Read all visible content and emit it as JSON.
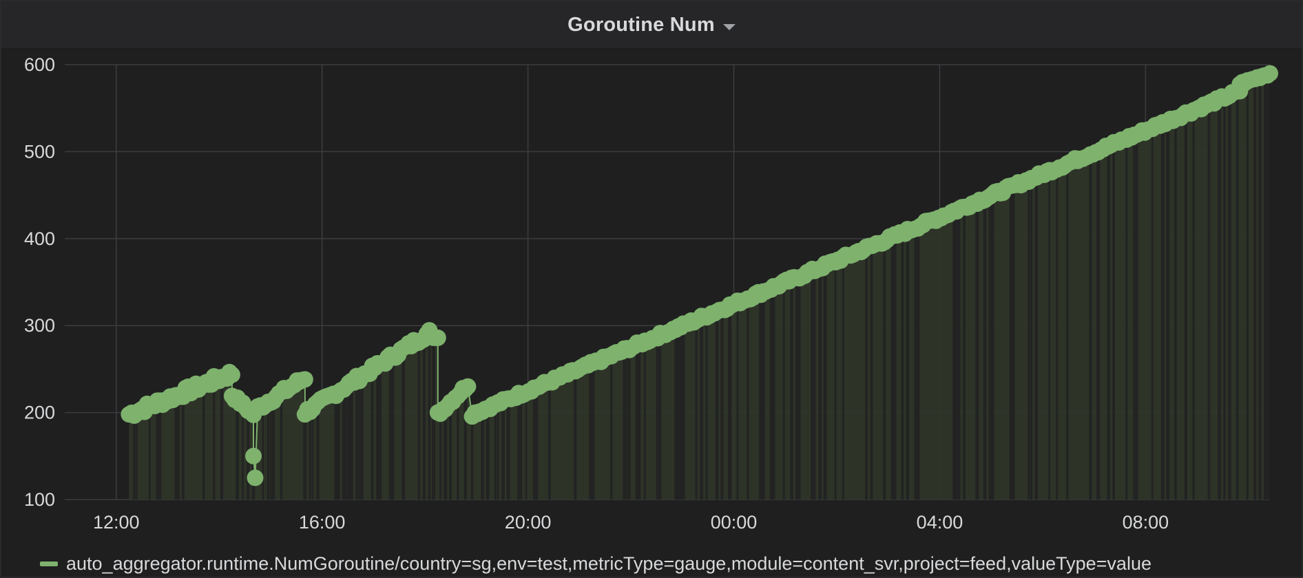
{
  "panel": {
    "title": "Goroutine Num",
    "menu_icon": "caret-down-icon"
  },
  "legend": {
    "items": [
      {
        "label": "auto_aggregator.runtime.NumGoroutine/country=sg,env=test,metricType=gauge,module=content_svr,project=feed,valueType=value",
        "color": "#7eb26d"
      }
    ]
  },
  "colors": {
    "background": "#1f1f20",
    "header": "#262628",
    "grid": "#3d3d40",
    "series": "#7eb26d",
    "area": "#2f3529",
    "text": "#d8d9da"
  },
  "chart_data": {
    "type": "line",
    "x_axis": {
      "type": "time",
      "min": "11:00",
      "max": "10:25 (+1d)",
      "ticks": [
        "12:00",
        "16:00",
        "20:00",
        "00:00",
        "04:00",
        "08:00"
      ]
    },
    "y_axis": {
      "min": 100,
      "max": 600,
      "ticks": [
        100,
        200,
        300,
        400,
        500,
        600
      ]
    },
    "grid": true,
    "fill": true,
    "points_visible": true,
    "legend_position": "bottom-left",
    "series": [
      {
        "name": "auto_aggregator.runtime.NumGoroutine/country=sg,env=test,metricType=gauge,module=content_svr,project=feed,valueType=value",
        "segments": [
          {
            "from": "12:15",
            "to": "14:15",
            "start": 198,
            "end": 245,
            "jitter": 10
          },
          {
            "from": "14:15",
            "to": "14:40",
            "start": 220,
            "end": 198,
            "jitter": 6
          },
          {
            "from": "14:40",
            "to": "14:42",
            "start": 150,
            "end": 125,
            "jitter": 0
          },
          {
            "from": "14:45",
            "to": "15:40",
            "start": 205,
            "end": 240,
            "jitter": 8
          },
          {
            "from": "15:40",
            "to": "18:05",
            "start": 200,
            "end": 292,
            "jitter": 8
          },
          {
            "from": "18:10",
            "to": "18:15",
            "start": 286,
            "end": 286,
            "jitter": 0
          },
          {
            "from": "18:15",
            "to": "18:50",
            "start": 198,
            "end": 232,
            "jitter": 6
          },
          {
            "from": "18:55",
            "to": "09:50",
            "start": 198,
            "end": 570,
            "jitter": 5
          },
          {
            "from": "09:50",
            "to": "10:25",
            "start": 578,
            "end": 590,
            "jitter": 3
          }
        ]
      }
    ]
  }
}
